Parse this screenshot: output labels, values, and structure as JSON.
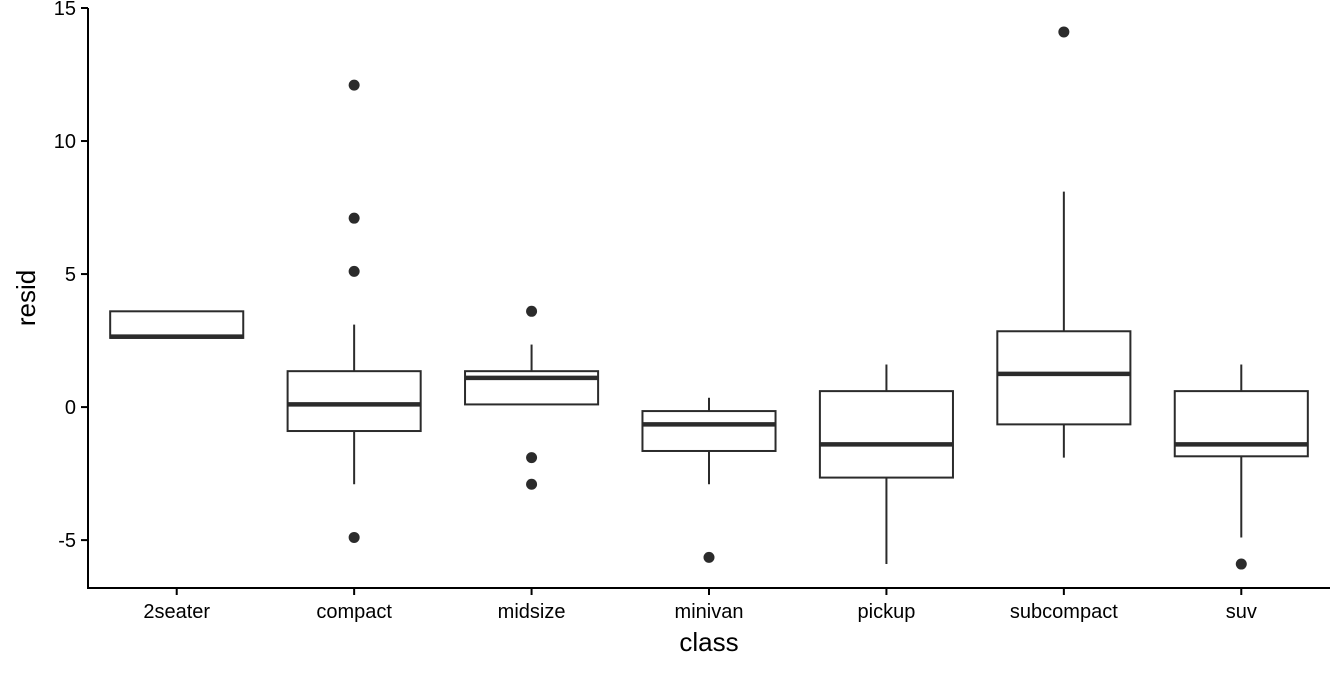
{
  "chart_data": {
    "type": "boxplot",
    "title": "",
    "xlabel": "class",
    "ylabel": "resid",
    "ylim": [
      -6.8,
      15.0
    ],
    "yticks": [
      -5,
      0,
      5,
      10,
      15
    ],
    "ytick_labels": [
      "-5",
      "0",
      "5",
      "10",
      "15"
    ],
    "grid": false,
    "legend": "none",
    "colors": {
      "box_stroke": "#2b2b2b",
      "outlier_fill": "#2b2b2b",
      "axis": "#000000",
      "background": "#ffffff"
    },
    "categories": [
      "2seater",
      "compact",
      "midsize",
      "minivan",
      "pickup",
      "subcompact",
      "suv"
    ],
    "boxes": [
      {
        "category": "2seater",
        "whisker_low": 2.6,
        "q1": 2.6,
        "median": 2.65,
        "q3": 3.6,
        "whisker_high": 3.6,
        "outliers": []
      },
      {
        "category": "compact",
        "whisker_low": -2.9,
        "q1": -0.9,
        "median": 0.1,
        "q3": 1.35,
        "whisker_high": 3.1,
        "outliers": [
          12.1,
          7.1,
          5.1,
          -4.9
        ]
      },
      {
        "category": "midsize",
        "whisker_low": 0.1,
        "q1": 0.1,
        "median": 1.1,
        "q3": 1.35,
        "whisker_high": 2.35,
        "outliers": [
          3.6,
          -1.9,
          -2.9
        ]
      },
      {
        "category": "minivan",
        "whisker_low": -2.9,
        "q1": -1.65,
        "median": -0.65,
        "q3": -0.15,
        "whisker_high": 0.35,
        "outliers": [
          -5.65
        ]
      },
      {
        "category": "pickup",
        "whisker_low": -5.9,
        "q1": -2.65,
        "median": -1.4,
        "q3": 0.6,
        "whisker_high": 1.6,
        "outliers": []
      },
      {
        "category": "subcompact",
        "whisker_low": -1.9,
        "q1": -0.65,
        "median": 1.25,
        "q3": 2.85,
        "whisker_high": 8.1,
        "outliers": [
          14.1
        ]
      },
      {
        "category": "suv",
        "whisker_low": -4.9,
        "q1": -1.85,
        "median": -1.4,
        "q3": 0.6,
        "whisker_high": 1.6,
        "outliers": [
          -5.9
        ]
      }
    ]
  }
}
